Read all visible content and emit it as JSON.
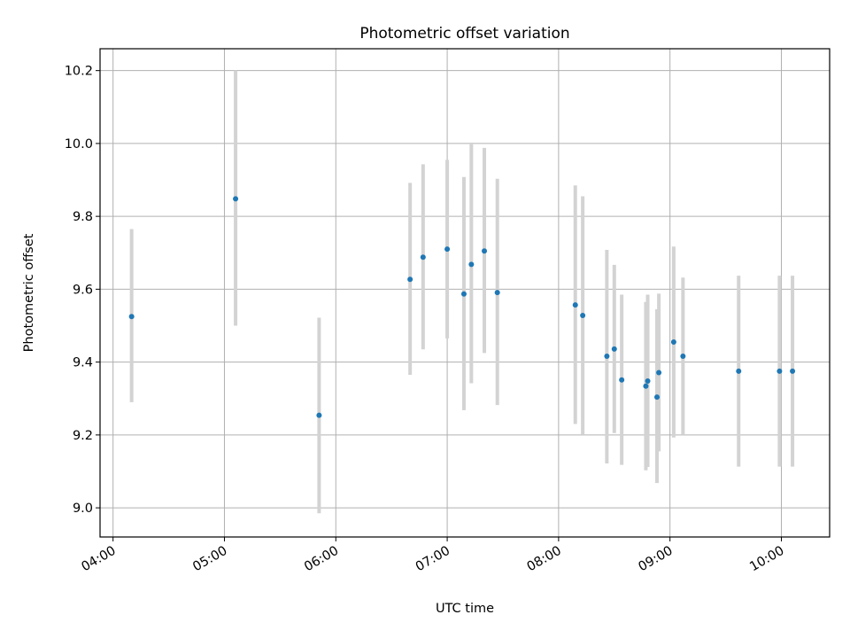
{
  "chart_data": {
    "type": "scatter",
    "title": "Photometric offset variation",
    "xlabel": "UTC time",
    "ylabel": "Photometric offset",
    "xlim": [
      "03:53",
      "10:26"
    ],
    "ylim": [
      8.92,
      10.26
    ],
    "x_ticks": [
      "04:00",
      "05:00",
      "06:00",
      "07:00",
      "08:00",
      "09:00",
      "10:00"
    ],
    "y_ticks": [
      "9.0",
      "9.2",
      "9.4",
      "9.6",
      "9.8",
      "10.0",
      "10.2"
    ],
    "grid": true,
    "colors": {
      "point": "#1f77b4",
      "error_bar": "#d3d3d3"
    },
    "points": [
      {
        "time": "04:10",
        "y": 9.525,
        "low": 9.29,
        "high": 9.765
      },
      {
        "time": "05:06",
        "y": 9.848,
        "low": 9.5,
        "high": 10.2
      },
      {
        "time": "05:51",
        "y": 9.254,
        "low": 8.985,
        "high": 9.522
      },
      {
        "time": "06:40",
        "y": 9.627,
        "low": 9.365,
        "high": 9.892
      },
      {
        "time": "06:47",
        "y": 9.688,
        "low": 9.435,
        "high": 9.943
      },
      {
        "time": "07:00",
        "y": 9.71,
        "low": 9.465,
        "high": 9.955
      },
      {
        "time": "07:09",
        "y": 9.587,
        "low": 9.268,
        "high": 9.908
      },
      {
        "time": "07:13",
        "y": 9.668,
        "low": 9.342,
        "high": 9.998
      },
      {
        "time": "07:20",
        "y": 9.705,
        "low": 9.425,
        "high": 9.988
      },
      {
        "time": "07:27",
        "y": 9.591,
        "low": 9.282,
        "high": 9.903
      },
      {
        "time": "08:09",
        "y": 9.557,
        "low": 9.23,
        "high": 9.885
      },
      {
        "time": "08:13",
        "y": 9.528,
        "low": 9.2,
        "high": 9.855
      },
      {
        "time": "08:26",
        "y": 9.416,
        "low": 9.122,
        "high": 9.708
      },
      {
        "time": "08:30",
        "y": 9.436,
        "low": 9.205,
        "high": 9.667
      },
      {
        "time": "08:34",
        "y": 9.351,
        "low": 9.118,
        "high": 9.585
      },
      {
        "time": "08:47",
        "y": 9.334,
        "low": 9.103,
        "high": 9.565
      },
      {
        "time": "08:48",
        "y": 9.348,
        "low": 9.112,
        "high": 9.585
      },
      {
        "time": "08:53",
        "y": 9.304,
        "low": 9.068,
        "high": 9.545
      },
      {
        "time": "08:54",
        "y": 9.371,
        "low": 9.155,
        "high": 9.588
      },
      {
        "time": "09:02",
        "y": 9.455,
        "low": 9.193,
        "high": 9.717
      },
      {
        "time": "09:07",
        "y": 9.416,
        "low": 9.2,
        "high": 9.632
      },
      {
        "time": "09:37",
        "y": 9.375,
        "low": 9.113,
        "high": 9.637
      },
      {
        "time": "09:59",
        "y": 9.375,
        "low": 9.113,
        "high": 9.637
      },
      {
        "time": "10:06",
        "y": 9.375,
        "low": 9.113,
        "high": 9.637
      }
    ]
  }
}
